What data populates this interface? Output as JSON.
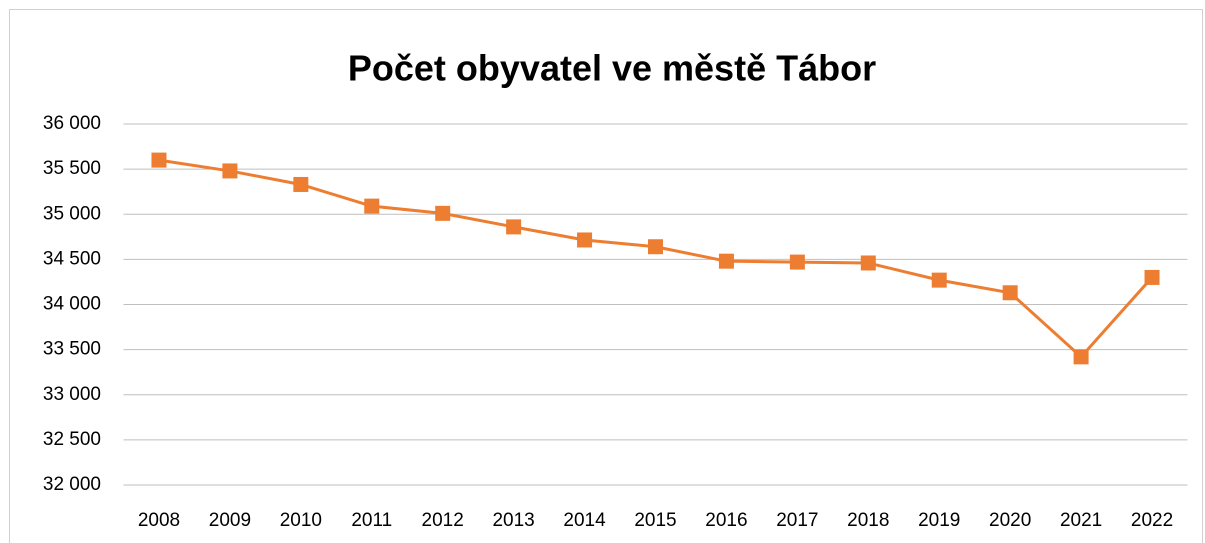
{
  "chart_data": {
    "type": "line",
    "title": "Počet obyvatel ve městě Tábor",
    "categories": [
      "2008",
      "2009",
      "2010",
      "2011",
      "2012",
      "2013",
      "2014",
      "2015",
      "2016",
      "2017",
      "2018",
      "2019",
      "2020",
      "2021",
      "2022"
    ],
    "series": [
      {
        "name": "Počet obyvatel",
        "color": "#ed7d31",
        "values": [
          35600,
          35480,
          35330,
          35090,
          35010,
          34860,
          34715,
          34640,
          34480,
          34470,
          34460,
          34270,
          34130,
          33420,
          34300
        ]
      }
    ],
    "ylim": [
      32000,
      36000
    ],
    "yticks": [
      {
        "value": 32000,
        "label": "32 000"
      },
      {
        "value": 32500,
        "label": "32 500"
      },
      {
        "value": 33000,
        "label": "33 000"
      },
      {
        "value": 33500,
        "label": "33 500"
      },
      {
        "value": 34000,
        "label": "34 000"
      },
      {
        "value": 34500,
        "label": "34 500"
      },
      {
        "value": 35000,
        "label": "35 000"
      },
      {
        "value": 35500,
        "label": "35 500"
      },
      {
        "value": 36000,
        "label": "36 000"
      }
    ],
    "grid": true
  }
}
